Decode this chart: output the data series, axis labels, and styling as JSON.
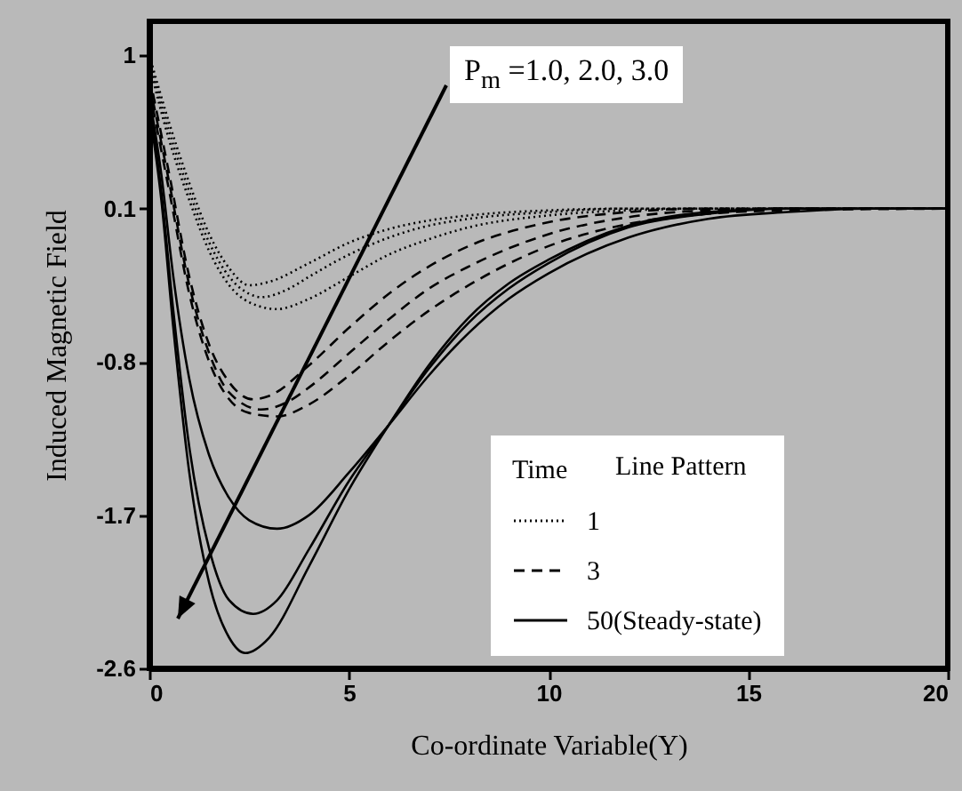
{
  "chart_data": {
    "type": "line",
    "xlabel": "Co-ordinate Variable(Y)",
    "ylabel": "Induced Magnetic Field",
    "legend_title": "Time",
    "xlim": [
      0,
      20
    ],
    "xticks": [
      0,
      5,
      10,
      15,
      20
    ],
    "ylim": [
      -2.6,
      1.2
    ],
    "yticks": [
      1,
      0.1,
      -0.8,
      -1.7,
      -2.6
    ],
    "grid": false,
    "legend": "bottom right",
    "marker": "none",
    "annotations": [
      "P$_{m}$ =1.0, 2.0, 3.0",
      "Line Pattern"
    ],
    "series": [
      {
        "name": "1",
        "color": "#000000",
        "line_style": "dotted",
        "x": [
          0,
          0.5,
          1,
          1.5,
          2,
          2.5,
          3,
          4,
          5,
          6,
          7,
          8,
          10,
          12,
          14,
          16,
          20
        ],
        "values": [
          1.0,
          0.6,
          0.25,
          -0.05,
          -0.25,
          -0.35,
          -0.33,
          -0.22,
          -0.1,
          -0.02,
          0.03,
          0.06,
          0.09,
          0.1,
          0.1,
          0.1,
          0.1
        ]
      },
      {
        "color": "#000000",
        "line_style": "dotted",
        "x": [
          0,
          0.5,
          1,
          1.5,
          2,
          2.5,
          2.8,
          3.5,
          4,
          5,
          6,
          7,
          8,
          10,
          12,
          14,
          16,
          20
        ],
        "values": [
          0.97,
          0.55,
          0.2,
          -0.1,
          -0.3,
          -0.4,
          -0.42,
          -0.37,
          -0.3,
          -0.17,
          -0.07,
          0,
          0.04,
          0.08,
          0.1,
          0.1,
          0.1,
          0.1
        ]
      },
      {
        "color": "#000000",
        "line_style": "dotted",
        "x": [
          0,
          0.5,
          1,
          1.5,
          2,
          2.5,
          3.2,
          4,
          5,
          6,
          7,
          8,
          10,
          12,
          14,
          16,
          20
        ],
        "values": [
          0.94,
          0.5,
          0.15,
          -0.15,
          -0.35,
          -0.45,
          -0.49,
          -0.43,
          -0.3,
          -0.17,
          -0.08,
          -0.01,
          0.06,
          0.09,
          0.1,
          0.1,
          0.1
        ]
      },
      {
        "name": "3",
        "color": "#000000",
        "line_style": "dashed",
        "x": [
          0,
          0.5,
          1,
          1.5,
          2,
          2.6,
          3,
          4,
          5,
          6,
          7,
          8,
          10,
          12,
          14,
          16,
          20
        ],
        "values": [
          0.88,
          0.3,
          -0.3,
          -0.7,
          -0.92,
          -1.02,
          -1.0,
          -0.82,
          -0.6,
          -0.4,
          -0.24,
          -0.12,
          0.02,
          0.08,
          0.1,
          0.1,
          0.1
        ]
      },
      {
        "color": "#000000",
        "line_style": "dashed",
        "x": [
          0,
          0.5,
          1,
          1.5,
          2,
          2.8,
          3.5,
          4,
          5,
          6,
          7,
          8,
          10,
          12,
          14,
          16,
          20
        ],
        "values": [
          0.84,
          0.25,
          -0.35,
          -0.75,
          -0.98,
          -1.08,
          -1.03,
          -0.95,
          -0.75,
          -0.55,
          -0.37,
          -0.24,
          -0.05,
          0.05,
          0.09,
          0.1,
          0.1
        ]
      },
      {
        "color": "#000000",
        "line_style": "dashed",
        "x": [
          0,
          0.5,
          1,
          1.5,
          2,
          2.5,
          3.2,
          4,
          5,
          6,
          7,
          8,
          10,
          12,
          14,
          16,
          20
        ],
        "values": [
          0.8,
          0.2,
          -0.4,
          -0.8,
          -1.02,
          -1.1,
          -1.12,
          -1.05,
          -0.88,
          -0.68,
          -0.5,
          -0.35,
          -0.12,
          0.01,
          0.07,
          0.09,
          0.1
        ]
      },
      {
        "name": "50(Steady-state)",
        "color": "#000000",
        "line_style": "solid",
        "x": [
          0,
          0.3,
          0.6,
          1,
          1.5,
          2,
          2.5,
          3.2,
          4,
          5,
          6,
          7,
          8,
          9,
          10,
          12,
          14,
          16,
          18,
          20
        ],
        "values": [
          0.76,
          0.3,
          -0.3,
          -0.9,
          -1.35,
          -1.6,
          -1.73,
          -1.78,
          -1.7,
          -1.45,
          -1.17,
          -0.88,
          -0.63,
          -0.43,
          -0.28,
          -0.07,
          0.04,
          0.08,
          0.1,
          0.1
        ]
      },
      {
        "color": "#000000",
        "line_style": "solid",
        "x": [
          0,
          0.3,
          0.6,
          1,
          1.5,
          2,
          2.6,
          3.2,
          4,
          5,
          6,
          7,
          8,
          9,
          10,
          12,
          14,
          16,
          18,
          20
        ],
        "values": [
          0.72,
          0.2,
          -0.5,
          -1.3,
          -1.9,
          -2.2,
          -2.28,
          -2.2,
          -1.9,
          -1.5,
          -1.17,
          -0.84,
          -0.57,
          -0.37,
          -0.22,
          -0.01,
          0.07,
          0.1,
          0.1,
          0.1
        ]
      },
      {
        "color": "#000000",
        "line_style": "solid",
        "x": [
          0,
          0.3,
          0.6,
          1,
          1.5,
          2,
          2.4,
          3,
          4,
          5,
          6,
          7,
          8,
          9,
          10,
          12,
          14,
          16,
          18,
          20
        ],
        "values": [
          0.68,
          0.15,
          -0.6,
          -1.45,
          -2.1,
          -2.42,
          -2.51,
          -2.42,
          -2.0,
          -1.55,
          -1.17,
          -0.82,
          -0.54,
          -0.34,
          -0.2,
          0.0,
          0.08,
          0.1,
          0.1,
          0.1
        ]
      }
    ]
  }
}
